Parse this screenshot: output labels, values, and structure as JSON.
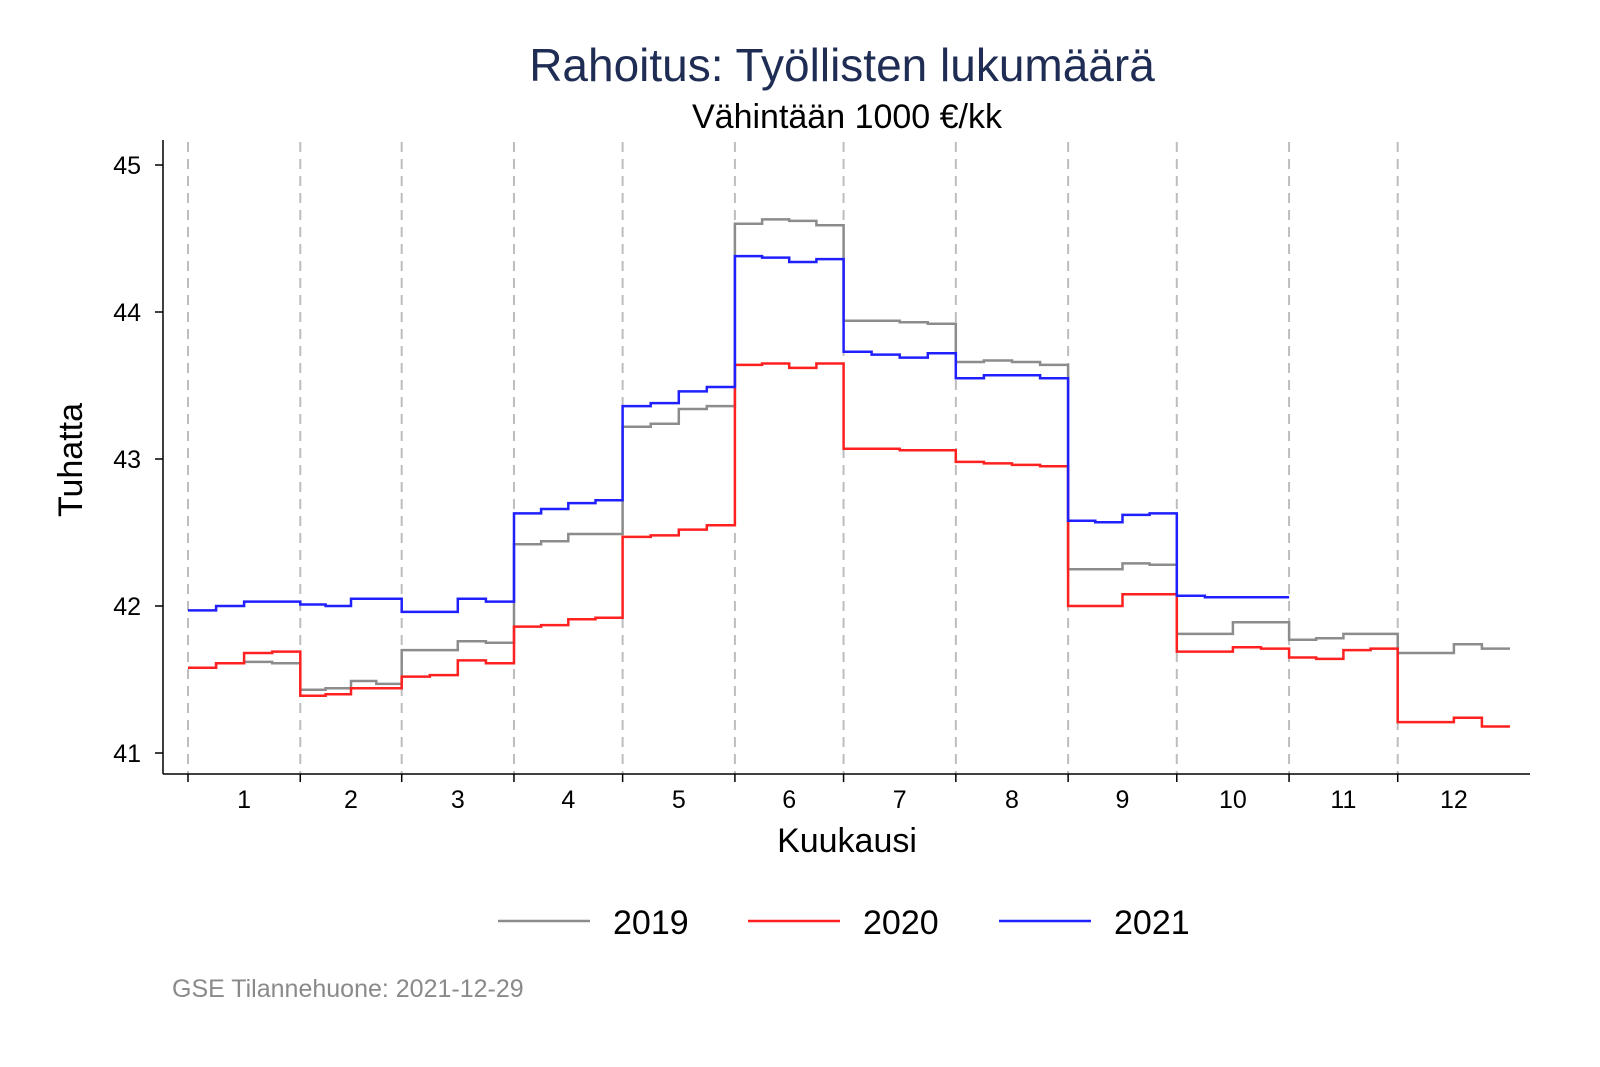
{
  "chart_data": {
    "type": "line",
    "title": "Rahoitus: Työllisten lukumäärä",
    "subtitle": "Vähintään 1000 €/kk",
    "xlabel": "Kuukausi",
    "ylabel": "Tuhatta",
    "ylim": [
      40.85,
      45.17
    ],
    "yticks": [
      41,
      42,
      43,
      44,
      45
    ],
    "ytick_labels": [
      "41",
      "42",
      "43",
      "44",
      "45"
    ],
    "categories": [
      "1",
      "2",
      "3",
      "4",
      "5",
      "6",
      "7",
      "8",
      "9",
      "10",
      "11",
      "12"
    ],
    "month_days": [
      31,
      28,
      31,
      30,
      31,
      30,
      31,
      31,
      30,
      31,
      30,
      31
    ],
    "grid": "vertical dashed at month boundaries",
    "legend_position": "bottom",
    "note": "values are quarter-month step levels per month",
    "series": [
      {
        "name": "2019",
        "color": "#8c8c8c",
        "values": [
          [
            41.58,
            41.61,
            41.62,
            41.61
          ],
          [
            41.43,
            41.44,
            41.49,
            41.47
          ],
          [
            41.7,
            41.7,
            41.76,
            41.75
          ],
          [
            42.42,
            42.44,
            42.49,
            42.49
          ],
          [
            43.22,
            43.24,
            43.34,
            43.36
          ],
          [
            44.6,
            44.63,
            44.62,
            44.59
          ],
          [
            43.94,
            43.94,
            43.93,
            43.92
          ],
          [
            43.66,
            43.67,
            43.66,
            43.64
          ],
          [
            42.25,
            42.25,
            42.29,
            42.28
          ],
          [
            41.81,
            41.81,
            41.89,
            41.89
          ],
          [
            41.77,
            41.78,
            41.81,
            41.81
          ],
          [
            41.68,
            41.68,
            41.74,
            41.71
          ]
        ]
      },
      {
        "name": "2020",
        "color": "#ff2020",
        "values": [
          [
            41.58,
            41.61,
            41.68,
            41.69
          ],
          [
            41.39,
            41.4,
            41.44,
            41.44
          ],
          [
            41.52,
            41.53,
            41.63,
            41.61
          ],
          [
            41.86,
            41.87,
            41.91,
            41.92
          ],
          [
            42.47,
            42.48,
            42.52,
            42.55
          ],
          [
            43.64,
            43.65,
            43.62,
            43.65
          ],
          [
            43.07,
            43.07,
            43.06,
            43.06
          ],
          [
            42.98,
            42.97,
            42.96,
            42.95
          ],
          [
            42.0,
            42.0,
            42.08,
            42.08
          ],
          [
            41.69,
            41.69,
            41.72,
            41.71
          ],
          [
            41.65,
            41.64,
            41.7,
            41.71
          ],
          [
            41.21,
            41.21,
            41.24,
            41.18
          ]
        ]
      },
      {
        "name": "2021",
        "color": "#2020ff",
        "values": [
          [
            41.97,
            42.0,
            42.03,
            42.03
          ],
          [
            42.01,
            42.0,
            42.05,
            42.05
          ],
          [
            41.96,
            41.96,
            42.05,
            42.03
          ],
          [
            42.63,
            42.66,
            42.7,
            42.72
          ],
          [
            43.36,
            43.38,
            43.46,
            43.49
          ],
          [
            44.38,
            44.37,
            44.34,
            44.36
          ],
          [
            43.73,
            43.71,
            43.69,
            43.72
          ],
          [
            43.55,
            43.57,
            43.57,
            43.55
          ],
          [
            42.58,
            42.57,
            42.62,
            42.63
          ],
          [
            42.07,
            42.06,
            42.06,
            42.06
          ]
        ]
      }
    ]
  },
  "footer": "GSE Tilannehuone: 2021-12-29",
  "title_color": "#1f2d54"
}
